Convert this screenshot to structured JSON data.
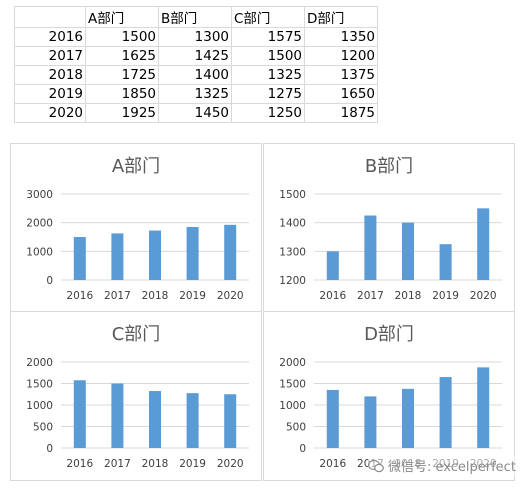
{
  "table": {
    "headers": [
      "",
      "A部门",
      "B部门",
      "C部门",
      "D部门"
    ],
    "rows": [
      [
        "2016",
        "1500",
        "1300",
        "1575",
        "1350"
      ],
      [
        "2017",
        "1625",
        "1425",
        "1500",
        "1200"
      ],
      [
        "2018",
        "1725",
        "1400",
        "1325",
        "1375"
      ],
      [
        "2019",
        "1850",
        "1325",
        "1275",
        "1650"
      ],
      [
        "2020",
        "1925",
        "1450",
        "1250",
        "1875"
      ]
    ]
  },
  "colors": {
    "bar": "#5b9bd5",
    "grid": "#d9d9d9",
    "border": "#d9d9d9"
  },
  "chart_data": [
    {
      "type": "bar",
      "title": "A部门",
      "categories": [
        "2016",
        "2017",
        "2018",
        "2019",
        "2020"
      ],
      "values": [
        1500,
        1625,
        1725,
        1850,
        1925
      ],
      "ylim": [
        0,
        3000
      ],
      "yticks": [
        0,
        1000,
        2000,
        3000
      ],
      "xlabel": "",
      "ylabel": "",
      "grid": true,
      "legend": "none"
    },
    {
      "type": "bar",
      "title": "B部门",
      "categories": [
        "2016",
        "2017",
        "2018",
        "2019",
        "2020"
      ],
      "values": [
        1300,
        1425,
        1400,
        1325,
        1450
      ],
      "ylim": [
        1200,
        1500
      ],
      "yticks": [
        1200,
        1300,
        1400,
        1500
      ],
      "xlabel": "",
      "ylabel": "",
      "grid": true,
      "legend": "none"
    },
    {
      "type": "bar",
      "title": "C部门",
      "categories": [
        "2016",
        "2017",
        "2018",
        "2019",
        "2020"
      ],
      "values": [
        1575,
        1500,
        1325,
        1275,
        1250
      ],
      "ylim": [
        0,
        2000
      ],
      "yticks": [
        0,
        500,
        1000,
        1500,
        2000
      ],
      "xlabel": "",
      "ylabel": "",
      "grid": true,
      "legend": "none"
    },
    {
      "type": "bar",
      "title": "D部门",
      "categories": [
        "2016",
        "2017",
        "2018",
        "2019",
        "2020"
      ],
      "values": [
        1350,
        1200,
        1375,
        1650,
        1875
      ],
      "ylim": [
        0,
        2000
      ],
      "yticks": [
        0,
        500,
        1000,
        1500,
        2000
      ],
      "xlabel": "",
      "ylabel": "",
      "grid": true,
      "legend": "none"
    }
  ],
  "watermark": {
    "text": "微信号: excelperfect",
    "icon": "wechat-icon"
  }
}
